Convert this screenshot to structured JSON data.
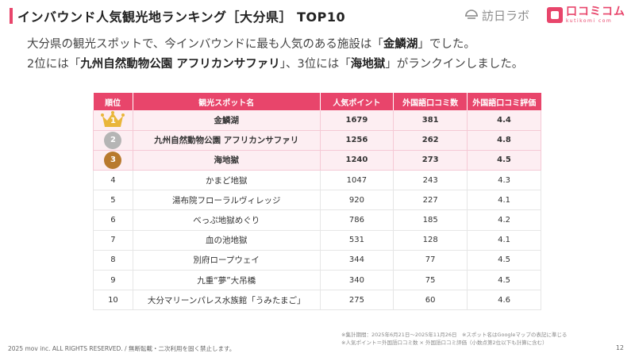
{
  "header": {
    "title": "インバウンド人気観光地ランキング［大分県］ TOP10",
    "logo_hn_text": "訪日ラボ",
    "logo_kk_text": "口コミコム",
    "logo_kk_sub": "kutikomi com",
    "accent_color": "#e8456b"
  },
  "lead": {
    "line1_a": "大分県の観光スポットで、今インバウンドに最も人気のある施設は「",
    "line1_b": "金鱗湖",
    "line1_c": "」でした。",
    "line2_a": "2位には「",
    "line2_b": "九州自然動物公園 アフリカンサファリ",
    "line2_c": "」、3位には「",
    "line2_d": "海地獄",
    "line2_e": "」がランクインしました。"
  },
  "table": {
    "headers": [
      "順位",
      "観光スポット名",
      "人気ポイント",
      "外国語口コミ数",
      "外国語口コミ評価"
    ],
    "rows": [
      {
        "rank": "1",
        "name": "金鱗湖",
        "points": "1679",
        "reviews": "381",
        "rating": "4.4"
      },
      {
        "rank": "2",
        "name": "九州自然動物公園 アフリカンサファリ",
        "points": "1256",
        "reviews": "262",
        "rating": "4.8"
      },
      {
        "rank": "3",
        "name": "海地獄",
        "points": "1240",
        "reviews": "273",
        "rating": "4.5"
      },
      {
        "rank": "4",
        "name": "かまど地獄",
        "points": "1047",
        "reviews": "243",
        "rating": "4.3"
      },
      {
        "rank": "5",
        "name": "湯布院フローラルヴィレッジ",
        "points": "920",
        "reviews": "227",
        "rating": "4.1"
      },
      {
        "rank": "6",
        "name": "べっぷ地獄めぐり",
        "points": "786",
        "reviews": "185",
        "rating": "4.2"
      },
      {
        "rank": "7",
        "name": "血の池地獄",
        "points": "531",
        "reviews": "128",
        "rating": "4.1"
      },
      {
        "rank": "8",
        "name": "別府ロープウェイ",
        "points": "344",
        "reviews": "77",
        "rating": "4.5"
      },
      {
        "rank": "9",
        "name": "九重“夢”大吊橋",
        "points": "340",
        "reviews": "75",
        "rating": "4.5"
      },
      {
        "rank": "10",
        "name": "大分マリーンパレス水族館「うみたまご」",
        "points": "275",
        "reviews": "60",
        "rating": "4.6"
      }
    ]
  },
  "notes": {
    "line1": "※集計期間：2025年6月21日〜2025年11月26日　※スポット名はGoogleマップの表記に準じる",
    "line2": "※人気ポイント＝外国語口コミ数 × 外国語口コミ評価（小数点第2位以下も計算に含む）"
  },
  "footer": {
    "copyright": "2025 mov inc. ALL RIGHTS RESERVED. / 無断転載・二次利用を固く禁止します。",
    "page_number": "12"
  }
}
